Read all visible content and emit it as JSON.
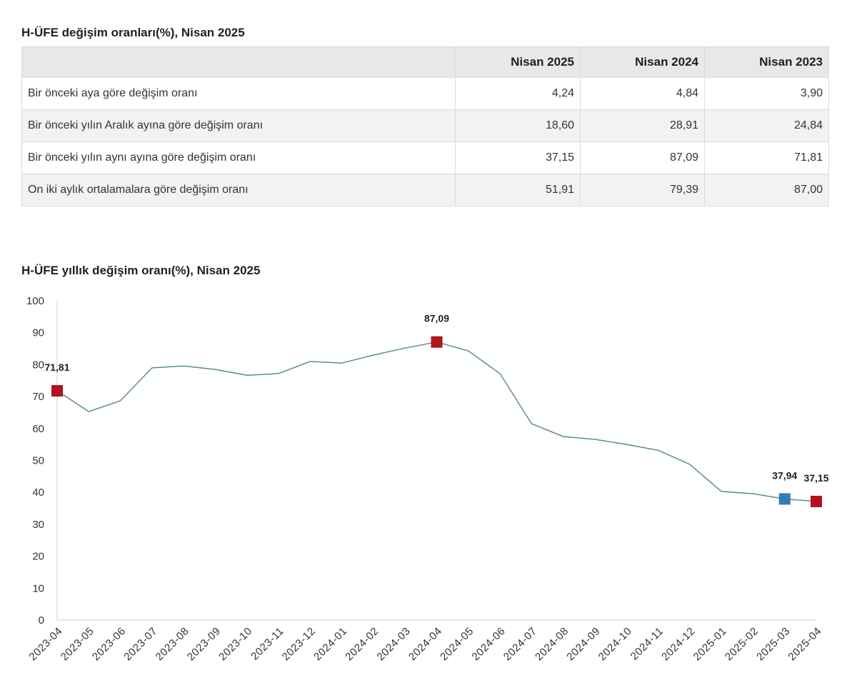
{
  "table": {
    "title": "H-ÜFE değişim oranları(%), Nisan 2025",
    "headers": [
      "Nisan 2025",
      "Nisan 2024",
      "Nisan 2023"
    ],
    "rows": [
      {
        "label": "Bir önceki aya göre değişim oranı",
        "values": [
          "4,24",
          "4,84",
          "3,90"
        ]
      },
      {
        "label": "Bir önceki yılın Aralık ayına göre değişim oranı",
        "values": [
          "18,60",
          "28,91",
          "24,84"
        ]
      },
      {
        "label": "Bir önceki yılın aynı ayına göre değişim oranı",
        "values": [
          "37,15",
          "87,09",
          "71,81"
        ]
      },
      {
        "label": "On iki aylık ortalamalara göre değişim oranı",
        "values": [
          "51,91",
          "79,39",
          "87,00"
        ]
      }
    ]
  },
  "chart_data": {
    "type": "line",
    "title": "H-ÜFE yıllık değişim oranı(%), Nisan 2025",
    "categories": [
      "2023-04",
      "2023-05",
      "2023-06",
      "2023-07",
      "2023-08",
      "2023-09",
      "2023-10",
      "2023-11",
      "2023-12",
      "2024-01",
      "2024-02",
      "2024-03",
      "2024-04",
      "2024-05",
      "2024-06",
      "2024-07",
      "2024-08",
      "2024-09",
      "2024-10",
      "2024-11",
      "2024-12",
      "2025-01",
      "2025-02",
      "2025-03",
      "2025-04"
    ],
    "series": [
      {
        "values": [
          71.81,
          65.3,
          68.7,
          79.0,
          79.6,
          78.5,
          76.7,
          77.2,
          81.0,
          80.5,
          83.0,
          85.2,
          87.09,
          84.3,
          77.2,
          61.5,
          57.5,
          56.6,
          55.0,
          53.2,
          48.8,
          40.3,
          39.6,
          37.94,
          37.15
        ]
      }
    ],
    "ylim": [
      0,
      100
    ],
    "yticks": [
      0,
      10,
      20,
      30,
      40,
      50,
      60,
      70,
      80,
      90,
      100
    ],
    "grid": false,
    "legend": "none",
    "highlights": [
      {
        "category": "2023-04",
        "label": "71,81",
        "marker_color": "#b0141c"
      },
      {
        "category": "2024-04",
        "label": "87,09",
        "marker_color": "#b0141c"
      },
      {
        "category": "2025-03",
        "label": "37,94",
        "marker_color": "#2f7dbd"
      },
      {
        "category": "2025-04",
        "label": "37,15",
        "marker_color": "#b0141c"
      }
    ],
    "colors": {
      "line": "#5b8c93",
      "axis": "#cfcfcf"
    }
  }
}
